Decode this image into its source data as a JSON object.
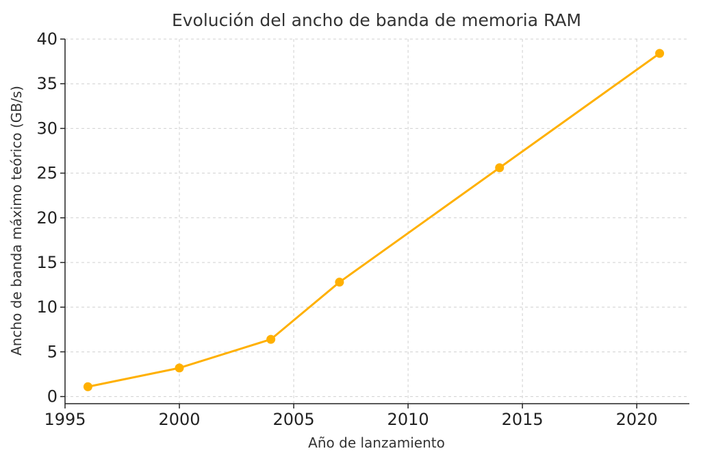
{
  "chart_data": {
    "type": "line",
    "title": "Evolución del ancho de banda de memoria RAM",
    "xlabel": "Año de lanzamiento",
    "ylabel": "Ancho de banda máximo teórico (GB/s)",
    "xlim": [
      1995,
      2022.3
    ],
    "ylim": [
      -0.8,
      40
    ],
    "xticks": [
      1995,
      2000,
      2005,
      2010,
      2015,
      2020
    ],
    "yticks": [
      0,
      5,
      10,
      15,
      20,
      25,
      30,
      35,
      40
    ],
    "grid": true,
    "series": [
      {
        "x": [
          1996,
          2000,
          2004,
          2007,
          2014,
          2021
        ],
        "y": [
          1.1,
          3.2,
          6.4,
          12.8,
          25.6,
          38.4
        ],
        "color": "#FFB000",
        "marker": "circle"
      }
    ]
  }
}
